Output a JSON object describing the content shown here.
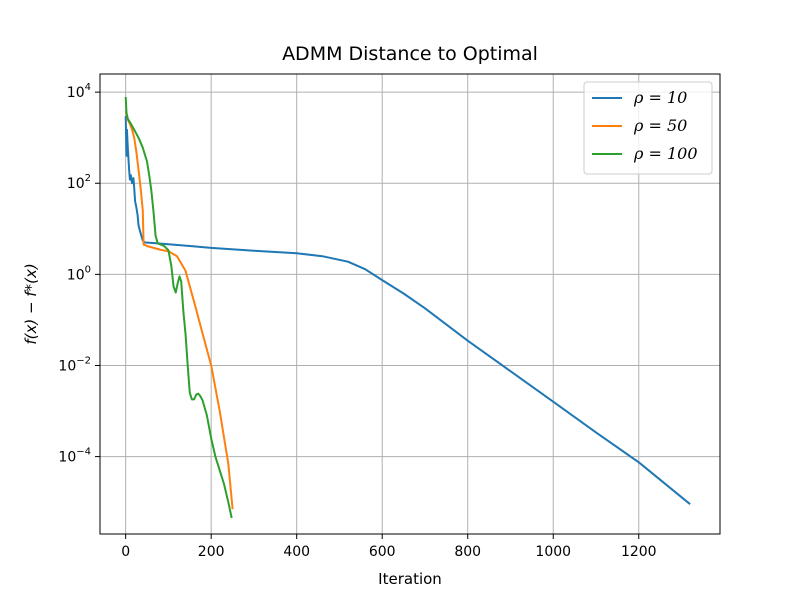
{
  "chart_data": {
    "type": "line",
    "title": "ADMM Distance to Optimal",
    "xlabel": "Iteration",
    "ylabel": "f(x) − f*(x)",
    "yscale": "log",
    "xlim": [
      -60,
      1390
    ],
    "ylim": [
      2e-06,
      25000
    ],
    "x_ticks": [
      0,
      200,
      400,
      600,
      800,
      1000,
      1200
    ],
    "x_tick_labels": [
      "0",
      "200",
      "400",
      "600",
      "800",
      "1000",
      "1200"
    ],
    "y_ticks": [
      10000,
      100,
      1,
      0.01,
      0.0001
    ],
    "y_tick_labels": [
      {
        "base": "10",
        "exp": "4"
      },
      {
        "base": "10",
        "exp": "2"
      },
      {
        "base": "10",
        "exp": "0"
      },
      {
        "base": "10",
        "exp": "−2"
      },
      {
        "base": "10",
        "exp": "−4"
      }
    ],
    "grid": true,
    "legend_position": "top-right",
    "series": [
      {
        "name": "ρ = 10",
        "color": "#1f77b4",
        "points": [
          [
            0,
            3000
          ],
          [
            2,
            400
          ],
          [
            3,
            1500
          ],
          [
            5,
            600
          ],
          [
            8,
            200
          ],
          [
            10,
            120
          ],
          [
            12,
            150
          ],
          [
            15,
            100
          ],
          [
            18,
            130
          ],
          [
            20,
            80
          ],
          [
            22,
            40
          ],
          [
            25,
            30
          ],
          [
            28,
            20
          ],
          [
            30,
            12
          ],
          [
            35,
            8
          ],
          [
            40,
            5.5
          ],
          [
            45,
            5.0
          ],
          [
            60,
            4.9
          ],
          [
            100,
            4.6
          ],
          [
            150,
            4.2
          ],
          [
            200,
            3.8
          ],
          [
            300,
            3.3
          ],
          [
            400,
            2.9
          ],
          [
            460,
            2.5
          ],
          [
            520,
            1.9
          ],
          [
            560,
            1.3
          ],
          [
            600,
            0.75
          ],
          [
            650,
            0.38
          ],
          [
            700,
            0.18
          ],
          [
            800,
            0.035
          ],
          [
            900,
            0.0075
          ],
          [
            1000,
            0.0016
          ],
          [
            1100,
            0.00034
          ],
          [
            1200,
            7.5e-05
          ],
          [
            1320,
            9e-06
          ]
        ]
      },
      {
        "name": "ρ = 50",
        "color": "#ff7f0e",
        "points": [
          [
            0,
            3800
          ],
          [
            5,
            2500
          ],
          [
            10,
            2000
          ],
          [
            15,
            1500
          ],
          [
            20,
            1000
          ],
          [
            25,
            500
          ],
          [
            30,
            200
          ],
          [
            35,
            80
          ],
          [
            40,
            25
          ],
          [
            42,
            4.5
          ],
          [
            50,
            4.2
          ],
          [
            80,
            3.5
          ],
          [
            100,
            3.2
          ],
          [
            120,
            2.5
          ],
          [
            140,
            1.2
          ],
          [
            160,
            0.25
          ],
          [
            180,
            0.05
          ],
          [
            200,
            0.01
          ],
          [
            220,
            0.001
          ],
          [
            240,
            7e-05
          ],
          [
            250,
            7e-06
          ]
        ]
      },
      {
        "name": "ρ = 100",
        "color": "#2ca02c",
        "points": [
          [
            0,
            7800
          ],
          [
            2,
            3500
          ],
          [
            5,
            2600
          ],
          [
            10,
            2200
          ],
          [
            20,
            1500
          ],
          [
            30,
            1000
          ],
          [
            40,
            600
          ],
          [
            50,
            300
          ],
          [
            55,
            150
          ],
          [
            60,
            70
          ],
          [
            65,
            25
          ],
          [
            70,
            7
          ],
          [
            75,
            4.8
          ],
          [
            80,
            4.6
          ],
          [
            90,
            4.2
          ],
          [
            100,
            3.4
          ],
          [
            107,
            1.5
          ],
          [
            112,
            0.55
          ],
          [
            117,
            0.4
          ],
          [
            122,
            0.65
          ],
          [
            126,
            0.9
          ],
          [
            130,
            0.7
          ],
          [
            135,
            0.15
          ],
          [
            140,
            0.05
          ],
          [
            145,
            0.01
          ],
          [
            150,
            0.0025
          ],
          [
            155,
            0.0018
          ],
          [
            160,
            0.0018
          ],
          [
            165,
            0.0023
          ],
          [
            170,
            0.0024
          ],
          [
            175,
            0.0021
          ],
          [
            180,
            0.0017
          ],
          [
            190,
            0.0008
          ],
          [
            200,
            0.00025
          ],
          [
            210,
            0.0001
          ],
          [
            220,
            5e-05
          ],
          [
            230,
            2.5e-05
          ],
          [
            240,
            1e-05
          ],
          [
            248,
            4.5e-06
          ]
        ]
      }
    ]
  }
}
